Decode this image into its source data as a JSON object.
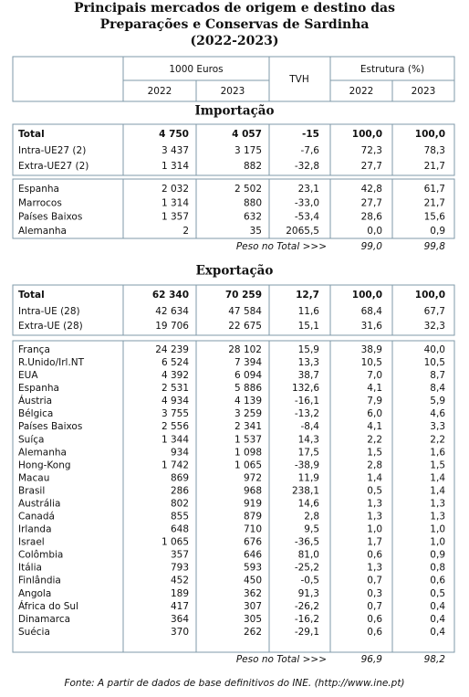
{
  "title": [
    "Principais mercados de origem e destino das",
    "Preparações e Conservas de Sardinha",
    "(2022-2023)"
  ],
  "header": {
    "group1": "1000 Euros",
    "tvh": "TVH",
    "group2": "Estrutura (%)",
    "years": [
      "2022",
      "2023",
      "2022",
      "2023"
    ]
  },
  "sections": [
    {
      "title": "Importação",
      "total": {
        "label": "Total",
        "cells": [
          "4 750",
          "4 057",
          "-15",
          "100,0",
          "100,0"
        ]
      },
      "blocs": [
        [
          {
            "label": "Intra-UE27 (2)",
            "cells": [
              "3 437",
              "3 175",
              "-7,6",
              "72,3",
              "78,3"
            ]
          },
          {
            "label": "Extra-UE27 (2)",
            "cells": [
              "1 314",
              "882",
              "-32,8",
              "27,7",
              "21,7"
            ]
          }
        ],
        [
          {
            "label": "Espanha",
            "cells": [
              "2 032",
              "2 502",
              "23,1",
              "42,8",
              "61,7"
            ]
          },
          {
            "label": "Marrocos",
            "cells": [
              "1 314",
              "880",
              "-33,0",
              "27,7",
              "21,7"
            ]
          },
          {
            "label": "Países Baixos",
            "cells": [
              "1 357",
              "632",
              "-53,4",
              "28,6",
              "15,6"
            ]
          },
          {
            "label": "Alemanha",
            "cells": [
              "2",
              "35",
              "2065,5",
              "0,0",
              "0,9"
            ]
          }
        ]
      ],
      "peso": {
        "label": "Peso no Total >>>",
        "cells": [
          "99,0",
          "99,8"
        ]
      }
    },
    {
      "title": "Exportação",
      "total": {
        "label": "Total",
        "cells": [
          "62 340",
          "70 259",
          "12,7",
          "100,0",
          "100,0"
        ]
      },
      "blocs": [
        [
          {
            "label": "Intra-UE (28)",
            "cells": [
              "42 634",
              "47 584",
              "11,6",
              "68,4",
              "67,7"
            ]
          },
          {
            "label": "Extra-UE (28)",
            "cells": [
              "19 706",
              "22 675",
              "15,1",
              "31,6",
              "32,3"
            ]
          }
        ],
        [
          {
            "label": "França",
            "cells": [
              "24 239",
              "28 102",
              "15,9",
              "38,9",
              "40,0"
            ]
          },
          {
            "label": "R.Unido/Irl.NT",
            "cells": [
              "6 524",
              "7 394",
              "13,3",
              "10,5",
              "10,5"
            ]
          },
          {
            "label": "EUA",
            "cells": [
              "4 392",
              "6 094",
              "38,7",
              "7,0",
              "8,7"
            ]
          },
          {
            "label": "Espanha",
            "cells": [
              "2 531",
              "5 886",
              "132,6",
              "4,1",
              "8,4"
            ]
          },
          {
            "label": "Áustria",
            "cells": [
              "4 934",
              "4 139",
              "-16,1",
              "7,9",
              "5,9"
            ]
          },
          {
            "label": "Bélgica",
            "cells": [
              "3 755",
              "3 259",
              "-13,2",
              "6,0",
              "4,6"
            ]
          },
          {
            "label": "Países Baixos",
            "cells": [
              "2 556",
              "2 341",
              "-8,4",
              "4,1",
              "3,3"
            ]
          },
          {
            "label": "Suíça",
            "cells": [
              "1 344",
              "1 537",
              "14,3",
              "2,2",
              "2,2"
            ]
          },
          {
            "label": "Alemanha",
            "cells": [
              "934",
              "1 098",
              "17,5",
              "1,5",
              "1,6"
            ]
          },
          {
            "label": "Hong-Kong",
            "cells": [
              "1 742",
              "1 065",
              "-38,9",
              "2,8",
              "1,5"
            ]
          },
          {
            "label": "Macau",
            "cells": [
              "869",
              "972",
              "11,9",
              "1,4",
              "1,4"
            ]
          },
          {
            "label": "Brasil",
            "cells": [
              "286",
              "968",
              "238,1",
              "0,5",
              "1,4"
            ]
          },
          {
            "label": "Austrália",
            "cells": [
              "802",
              "919",
              "14,6",
              "1,3",
              "1,3"
            ]
          },
          {
            "label": "Canadá",
            "cells": [
              "855",
              "879",
              "2,8",
              "1,3",
              "1,3"
            ]
          },
          {
            "label": "Irlanda",
            "cells": [
              "648",
              "710",
              "9,5",
              "1,0",
              "1,0"
            ]
          },
          {
            "label": "Israel",
            "cells": [
              "1 065",
              "676",
              "-36,5",
              "1,7",
              "1,0"
            ]
          },
          {
            "label": "Colômbia",
            "cells": [
              "357",
              "646",
              "81,0",
              "0,6",
              "0,9"
            ]
          },
          {
            "label": "Itália",
            "cells": [
              "793",
              "593",
              "-25,2",
              "1,3",
              "0,8"
            ]
          },
          {
            "label": "Finlândia",
            "cells": [
              "452",
              "450",
              "-0,5",
              "0,7",
              "0,6"
            ]
          },
          {
            "label": "Angola",
            "cells": [
              "189",
              "362",
              "91,3",
              "0,3",
              "0,5"
            ]
          },
          {
            "label": "África do Sul",
            "cells": [
              "417",
              "307",
              "-26,2",
              "0,7",
              "0,4"
            ]
          },
          {
            "label": "Dinamarca",
            "cells": [
              "364",
              "305",
              "-16,2",
              "0,6",
              "0,4"
            ]
          },
          {
            "label": "Suécia",
            "cells": [
              "370",
              "262",
              "-29,1",
              "0,6",
              "0,4"
            ]
          }
        ]
      ],
      "peso": {
        "label": "Peso no Total >>>",
        "cells": [
          "96,9",
          "98,2"
        ]
      }
    }
  ],
  "footer": "Fonte: A partir de dados de base definitivos do INE.  (http://www.ine.pt)"
}
